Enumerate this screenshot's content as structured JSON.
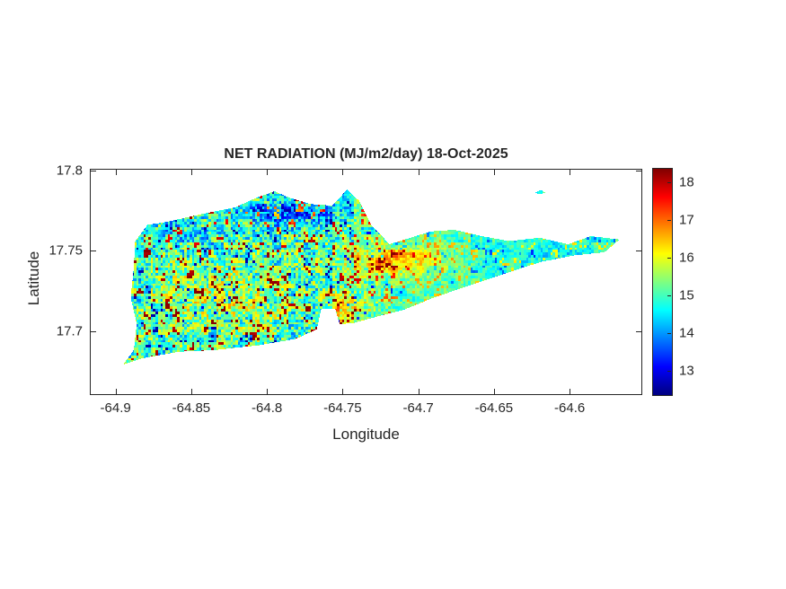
{
  "figure": {
    "background": "#ffffff",
    "axis_color": "#262626"
  },
  "chart_data": {
    "type": "heatmap",
    "title": "NET RADIATION (MJ/m2/day) 18-Oct-2025",
    "xlabel": "Longitude",
    "ylabel": "Latitude",
    "units": "MJ/m2/day",
    "date": "18-Oct-2025",
    "grid": false,
    "xlim": [
      -64.917,
      -64.552
    ],
    "ylim": [
      17.66,
      17.801
    ],
    "x_ticks": [
      -64.9,
      -64.85,
      -64.8,
      -64.75,
      -64.7,
      -64.65,
      -64.6
    ],
    "x_tick_labels": [
      "-64.9",
      "-64.85",
      "-64.8",
      "-64.75",
      "-64.7",
      "-64.65",
      "-64.6"
    ],
    "y_ticks": [
      17.7,
      17.75,
      17.8
    ],
    "y_tick_labels": [
      "17.7",
      "17.75",
      "17.8"
    ],
    "colorbar": {
      "ticks": [
        13,
        14,
        15,
        16,
        17,
        18
      ],
      "tick_labels": [
        "13",
        "14",
        "15",
        "16",
        "17",
        "18"
      ],
      "range": [
        12.35,
        18.35
      ],
      "colormap": "jet",
      "position": "right"
    },
    "island_polygons": [
      [
        [
          -64.888,
          17.739
        ],
        [
          -64.887,
          17.756
        ],
        [
          -64.879,
          17.766
        ],
        [
          -64.866,
          17.768
        ],
        [
          -64.842,
          17.773
        ],
        [
          -64.821,
          17.777
        ],
        [
          -64.807,
          17.783
        ],
        [
          -64.795,
          17.787
        ],
        [
          -64.785,
          17.783
        ],
        [
          -64.771,
          17.779
        ],
        [
          -64.757,
          17.778
        ],
        [
          -64.747,
          17.788
        ],
        [
          -64.739,
          17.781
        ],
        [
          -64.731,
          17.766
        ],
        [
          -64.719,
          17.754
        ],
        [
          -64.705,
          17.758
        ],
        [
          -64.692,
          17.762
        ],
        [
          -64.676,
          17.763
        ],
        [
          -64.658,
          17.759
        ],
        [
          -64.64,
          17.756
        ],
        [
          -64.62,
          17.758
        ],
        [
          -64.601,
          17.754
        ],
        [
          -64.586,
          17.759
        ],
        [
          -64.567,
          17.757
        ],
        [
          -64.577,
          17.749
        ],
        [
          -64.597,
          17.747
        ],
        [
          -64.619,
          17.743
        ],
        [
          -64.642,
          17.736
        ],
        [
          -64.667,
          17.728
        ],
        [
          -64.689,
          17.721
        ],
        [
          -64.71,
          17.713
        ],
        [
          -64.727,
          17.709
        ],
        [
          -64.742,
          17.705
        ],
        [
          -64.752,
          17.704
        ],
        [
          -64.755,
          17.714
        ],
        [
          -64.764,
          17.714
        ],
        [
          -64.767,
          17.701
        ],
        [
          -64.781,
          17.695
        ],
        [
          -64.805,
          17.691
        ],
        [
          -64.835,
          17.688
        ],
        [
          -64.858,
          17.687
        ],
        [
          -64.882,
          17.683
        ],
        [
          -64.895,
          17.679
        ],
        [
          -64.888,
          17.688
        ],
        [
          -64.886,
          17.704
        ],
        [
          -64.89,
          17.721
        ]
      ],
      [
        [
          -64.623,
          17.786
        ],
        [
          -64.619,
          17.788
        ],
        [
          -64.616,
          17.786
        ],
        [
          -64.62,
          17.785
        ]
      ]
    ],
    "value_field": {
      "base": 15.1,
      "clamp": [
        12.6,
        18.3
      ],
      "speckle": {
        "amp_west": 1.9,
        "amp_east": 0.9,
        "west_lon": -64.7,
        "transition": 0.06,
        "cell_fine": 0.0016,
        "cell_coarse": 0.0048,
        "seed": 7,
        "hot_spike": 0.8,
        "cold_spike": 0.6
      },
      "blobs": [
        {
          "lon": -64.79,
          "lat": 17.773,
          "sx": 0.03,
          "sy": 0.006,
          "amp": -1.7
        },
        {
          "lon": -64.715,
          "lat": 17.744,
          "sx": 0.03,
          "sy": 0.009,
          "amp": 1.6
        },
        {
          "lon": -64.748,
          "lat": 17.714,
          "sx": 0.016,
          "sy": 0.009,
          "amp": 1.2
        },
        {
          "lon": -64.615,
          "lat": 17.748,
          "sx": 0.045,
          "sy": 0.012,
          "amp": -0.5
        },
        {
          "lon": -64.83,
          "lat": 17.72,
          "sx": 0.04,
          "sy": 0.02,
          "amp": 0.6
        },
        {
          "lon": -64.85,
          "lat": 17.76,
          "sx": 0.02,
          "sy": 0.008,
          "amp": -0.5
        }
      ]
    }
  }
}
